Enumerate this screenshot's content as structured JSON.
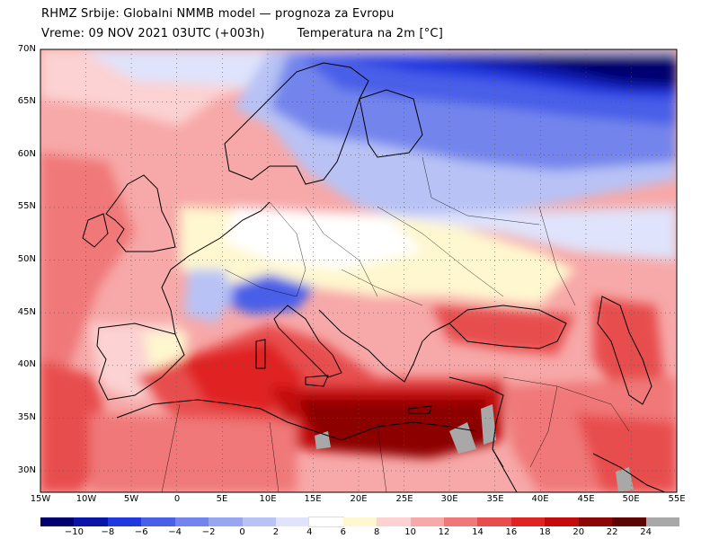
{
  "header": {
    "line1": "RHMZ Srbije: Globalni NMMB model — prognoza za Evropu",
    "line2_time": "Vreme: 09 NOV 2021 03UTC (+003h)",
    "line2_var": "Temperatura na 2m [°C]"
  },
  "map": {
    "lat_labels": [
      "70N",
      "65N",
      "60N",
      "55N",
      "50N",
      "45N",
      "40N",
      "35N",
      "30N"
    ],
    "lon_labels": [
      "15W",
      "10W",
      "5W",
      "0",
      "5E",
      "10E",
      "15E",
      "20E",
      "25E",
      "30E",
      "35E",
      "40E",
      "45E",
      "50E",
      "55E"
    ]
  },
  "colorbar": {
    "labels": [
      "−10",
      "−8",
      "−6",
      "−4",
      "−2",
      "0",
      "2",
      "4",
      "6",
      "8",
      "10",
      "12",
      "14",
      "16",
      "18",
      "20",
      "22",
      "24"
    ],
    "colors": [
      "#00006e",
      "#0a14a8",
      "#2038e0",
      "#4a5fe8",
      "#7385ec",
      "#96a6f0",
      "#b8c2f5",
      "#dfe3fb",
      "#ffffff",
      "#fff7cf",
      "#fcd2d2",
      "#f7a8a8",
      "#f07878",
      "#e84d4d",
      "#e02424",
      "#c40a0a",
      "#8c0606",
      "#5c0404",
      "#a8a8a8"
    ]
  }
}
